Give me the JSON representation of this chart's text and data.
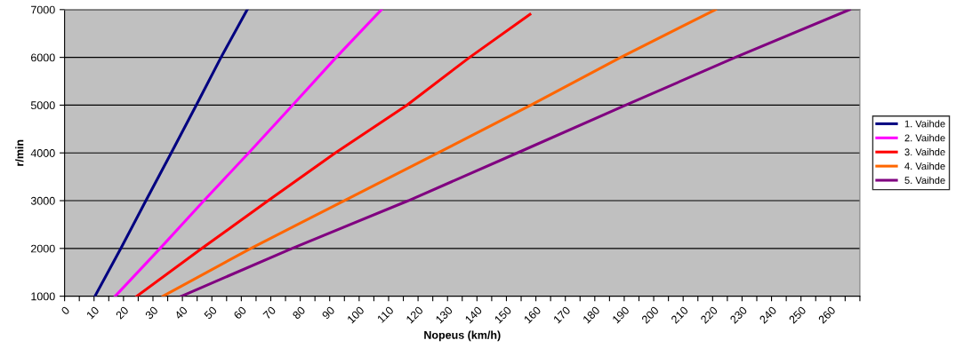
{
  "chart_data": {
    "type": "line",
    "xlabel": "Nopeus (km/h)",
    "ylabel": "r/min",
    "xlim": [
      0,
      270
    ],
    "ylim": [
      1000,
      7000
    ],
    "xticks": [
      0,
      {
        "value": 5,
        "label": null
      },
      10,
      {
        "value": 15,
        "label": null
      },
      20,
      {
        "value": 25,
        "label": null
      },
      30,
      {
        "value": 35,
        "label": null
      },
      40,
      {
        "value": 45,
        "label": null
      },
      50,
      {
        "value": 55,
        "label": null
      },
      60,
      {
        "value": 65,
        "label": null
      },
      70,
      {
        "value": 75,
        "label": null
      },
      80,
      {
        "value": 85,
        "label": null
      },
      90,
      {
        "value": 95,
        "label": null
      },
      100,
      {
        "value": 105,
        "label": null
      },
      110,
      {
        "value": 115,
        "label": null
      },
      120,
      {
        "value": 125,
        "label": null
      },
      130,
      {
        "value": 135,
        "label": null
      },
      140,
      {
        "value": 145,
        "label": null
      },
      150,
      {
        "value": 155,
        "label": null
      },
      160,
      {
        "value": 165,
        "label": null
      },
      170,
      {
        "value": 175,
        "label": null
      },
      180,
      {
        "value": 185,
        "label": null
      },
      190,
      {
        "value": 195,
        "label": null
      },
      200,
      {
        "value": 205,
        "label": null
      },
      210,
      {
        "value": 215,
        "label": null
      },
      220,
      {
        "value": 225,
        "label": null
      },
      230,
      {
        "value": 235,
        "label": null
      },
      240,
      {
        "value": 245,
        "label": null
      },
      250,
      {
        "value": 255,
        "label": null
      },
      260,
      {
        "value": 265,
        "label": null
      },
      {
        "value": 270,
        "label": null
      }
    ],
    "yticks": [
      1000,
      2000,
      3000,
      4000,
      5000,
      6000,
      7000
    ],
    "grid": "y",
    "legend": "right",
    "marker": "none",
    "line_style": "solid",
    "series": [
      {
        "name": "1. Vaihde",
        "color": "#000080",
        "x": [
          10.3,
          19.1,
          27.6,
          36.2,
          44.7,
          53.1,
          62
        ],
        "values": [
          1000,
          2000,
          3000,
          4000,
          5000,
          6000,
          7000
        ]
      },
      {
        "name": "2. Vaihde",
        "color": "#ff00ff",
        "x": [
          17.2,
          32.4,
          47.3,
          62.5,
          77.4,
          92.2,
          107.6
        ],
        "values": [
          1000,
          2000,
          3000,
          4000,
          5000,
          6000,
          7000
        ]
      },
      {
        "name": "3. Vaihde",
        "color": "#ff0000",
        "x": [
          24.5,
          46.6,
          69.1,
          91.9,
          116.2,
          137.5,
          158
        ],
        "values": [
          1000,
          2000,
          3000,
          4000,
          5000,
          6000,
          6900
        ]
      },
      {
        "name": "4. Vaihde",
        "color": "#ff6600",
        "x": [
          33.4,
          63.2,
          94.9,
          126.8,
          158.3,
          188.8,
          221
        ],
        "values": [
          1000,
          2000,
          3000,
          4000,
          5000,
          6000,
          7000
        ]
      },
      {
        "name": "5. Vaihde",
        "color": "#800080",
        "x": [
          39.7,
          77.2,
          116.7,
          153.7,
          190.5,
          227.7,
          266.5
        ],
        "values": [
          1000,
          2000,
          3000,
          4000,
          5000,
          6000,
          7000
        ]
      }
    ]
  }
}
